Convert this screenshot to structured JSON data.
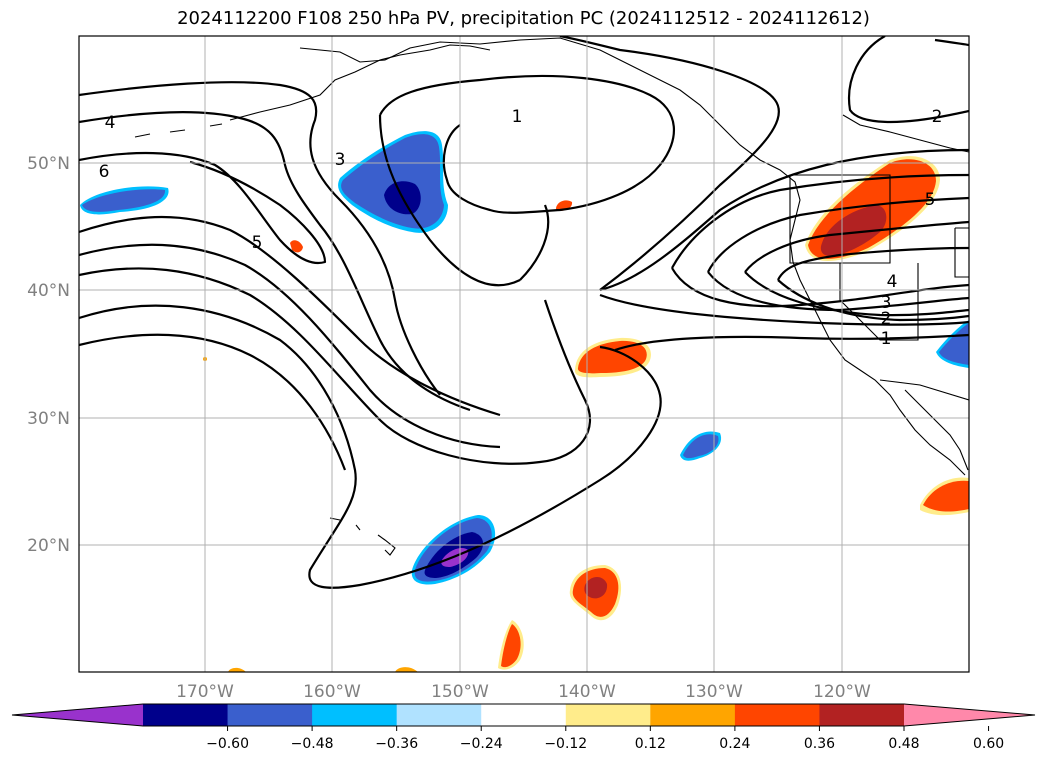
{
  "title": "2024112200 F108 250 hPa PV, precipitation PC (2024112512 - 2024112612)",
  "map": {
    "lat_labels": [
      "50°N",
      "40°N",
      "30°N",
      "20°N"
    ],
    "lon_labels": [
      "170°W",
      "160°W",
      "150°W",
      "140°W",
      "130°W",
      "120°W"
    ],
    "contour_labels": [
      "4",
      "6",
      "5",
      "3",
      "1",
      "2",
      "5",
      "4",
      "3",
      "2",
      "1"
    ]
  },
  "colorbar": {
    "colors": [
      "#9932cc",
      "#00008b",
      "#3a5fcd",
      "#00bfff",
      "#b0e2ff",
      "#ffffff",
      "#ffec8b",
      "#ffa500",
      "#ff4500",
      "#b22222",
      "#ff88aa"
    ],
    "tick_labels": [
      "−0.60",
      "−0.48",
      "−0.36",
      "−0.24",
      "−0.12",
      "0.12",
      "0.24",
      "0.36",
      "0.48",
      "0.60"
    ]
  }
}
